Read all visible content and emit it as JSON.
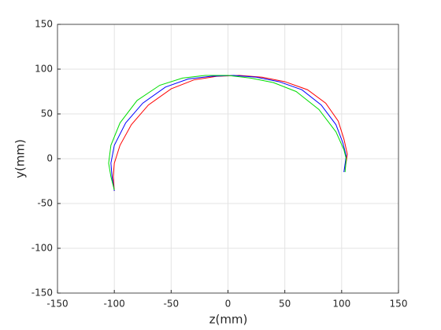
{
  "chart_data": {
    "type": "line",
    "x_label": "z(mm)",
    "y_label": "y(mm)",
    "xlim": [
      -150,
      150
    ],
    "ylim": [
      -150,
      150
    ],
    "xticks": [
      -150,
      -100,
      -50,
      0,
      50,
      100,
      150
    ],
    "yticks": [
      -150,
      -100,
      -50,
      0,
      50,
      100,
      150
    ],
    "grid": true,
    "series": [
      {
        "color": "#ff0000",
        "x": [
          -100,
          -101,
          -100,
          -95,
          -85,
          -70,
          -50,
          -30,
          -10,
          10,
          30,
          50,
          70,
          86,
          97,
          102,
          105,
          103
        ],
        "values": [
          -36,
          -20,
          -5,
          15,
          38,
          60,
          78,
          88,
          92,
          93,
          91,
          86,
          77,
          62,
          42,
          22,
          5,
          -12
        ]
      },
      {
        "color": "#0000ff",
        "x": [
          -100,
          -102,
          -103,
          -100,
          -90,
          -75,
          -55,
          -35,
          -15,
          5,
          25,
          45,
          65,
          82,
          95,
          101,
          104,
          102
        ],
        "values": [
          -36,
          -20,
          -5,
          15,
          40,
          62,
          80,
          89,
          92,
          93,
          91,
          86,
          77,
          60,
          38,
          18,
          3,
          -15
        ]
      },
      {
        "color": "#00dd00",
        "x": [
          -100,
          -103,
          -105,
          -103,
          -95,
          -80,
          -60,
          -40,
          -20,
          0,
          20,
          40,
          60,
          80,
          95,
          102,
          104,
          103
        ],
        "values": [
          -35,
          -20,
          -5,
          15,
          40,
          65,
          82,
          90,
          93,
          93,
          90,
          85,
          75,
          55,
          30,
          10,
          0,
          -15
        ]
      }
    ]
  }
}
